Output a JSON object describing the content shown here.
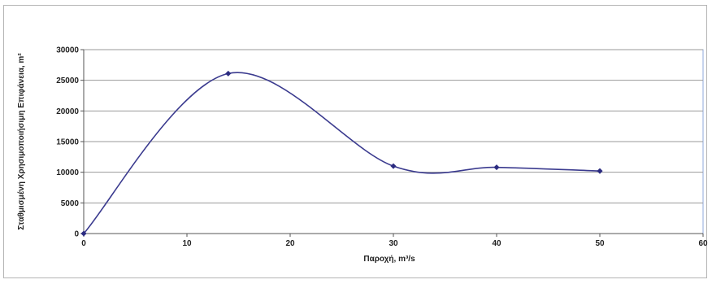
{
  "chart_data": {
    "type": "line",
    "title": "",
    "xlabel": "Παροχή, m³/s",
    "ylabel": "Σταθμισμένη Χρησιμοποιήσιμη Επιφάνεια, m²",
    "xlim": [
      0,
      60
    ],
    "ylim": [
      0,
      30000
    ],
    "xticks": [
      0,
      10,
      20,
      30,
      40,
      50,
      60
    ],
    "yticks": [
      0,
      5000,
      10000,
      15000,
      20000,
      25000,
      30000
    ],
    "grid": "horizontal",
    "legend": "none",
    "smooth": true,
    "series": [
      {
        "x": [
          0,
          14,
          30,
          40,
          50
        ],
        "y": [
          0,
          26100,
          11000,
          10800,
          10200
        ]
      }
    ],
    "colors": {
      "line": "#3b3b8f",
      "marker": "#2b2b80",
      "plot_border": "#8faadc",
      "grid": "#9a9a9a"
    }
  }
}
